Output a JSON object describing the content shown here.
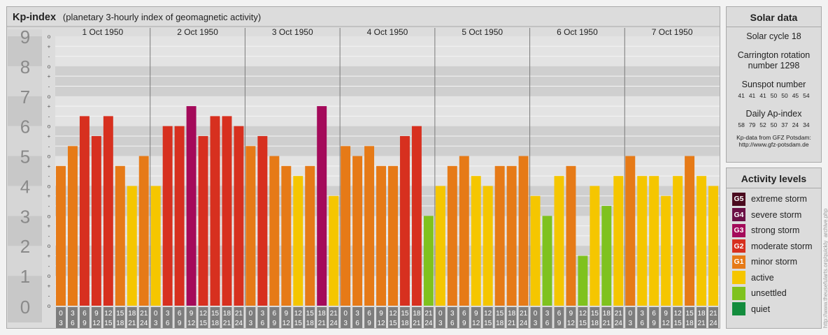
{
  "header": {
    "title": "Kp-index",
    "subtitle": "(planetary 3-hourly index of geomagnetic activity)"
  },
  "chart_data": {
    "type": "bar",
    "ylim": [
      0,
      9
    ],
    "y_major_ticks": [
      "0",
      "1",
      "2",
      "3",
      "4",
      "5",
      "6",
      "7",
      "8",
      "9"
    ],
    "y_minor_ticks": [
      "o",
      "+",
      "-"
    ],
    "days": [
      "1 Oct 1950",
      "2 Oct 1950",
      "3 Oct 1950",
      "4 Oct 1950",
      "5 Oct 1950",
      "6 Oct 1950",
      "7 Oct 1950"
    ],
    "interval_start": [
      "0",
      "3",
      "6",
      "9",
      "12",
      "15",
      "18",
      "21"
    ],
    "interval_end": [
      "3",
      "6",
      "9",
      "12",
      "15",
      "18",
      "21",
      "24"
    ],
    "values": [
      [
        4.667,
        5.333,
        6.333,
        5.667,
        6.333,
        4.667,
        4.0,
        5.0
      ],
      [
        4.0,
        6.0,
        6.0,
        6.667,
        5.667,
        6.333,
        6.333,
        6.0
      ],
      [
        5.333,
        5.667,
        5.0,
        4.667,
        4.333,
        4.667,
        6.667,
        3.667
      ],
      [
        5.333,
        5.0,
        5.333,
        4.667,
        4.667,
        5.667,
        6.0,
        3.0
      ],
      [
        4.0,
        4.667,
        5.0,
        4.333,
        4.0,
        4.667,
        4.667,
        5.0
      ],
      [
        3.667,
        3.0,
        4.333,
        4.667,
        1.667,
        4.0,
        3.333,
        4.333
      ],
      [
        5.0,
        4.333,
        4.333,
        3.667,
        4.333,
        5.0,
        4.333,
        4.0
      ]
    ],
    "colors": {
      "quiet": "#138c3d",
      "unsettled": "#7fc21e",
      "active": "#f5c600",
      "minor": "#e67a17",
      "moderate": "#d7301f",
      "strong": "#a40a5a",
      "severe": "#6b0f45",
      "extreme": "#4a0a1e"
    }
  },
  "solar": {
    "title": "Solar data",
    "cycle": "Solar cycle 18",
    "carrington_line1": "Carrington rotation",
    "carrington_line2": "number 1298",
    "sunspot_label": "Sunspot number",
    "sunspot_values": [
      "41",
      "41",
      "41",
      "50",
      "50",
      "45",
      "54"
    ],
    "ap_label": "Daily Ap-index",
    "ap_values": [
      "58",
      "79",
      "52",
      "50",
      "37",
      "24",
      "34"
    ],
    "credit_line1": "Kp-data from GFZ Potsdam:",
    "credit_line2": "http://www.gfz-potsdam.de"
  },
  "activity": {
    "title": "Activity levels",
    "items": [
      {
        "badge": "G5",
        "label": "extreme storm",
        "color": "#4a0a1e"
      },
      {
        "badge": "G4",
        "label": "severe storm",
        "color": "#6b0f45"
      },
      {
        "badge": "G3",
        "label": "strong storm",
        "color": "#a40a5a"
      },
      {
        "badge": "G2",
        "label": "moderate storm",
        "color": "#d7301f"
      },
      {
        "badge": "G1",
        "label": "minor storm",
        "color": "#e67a17"
      },
      {
        "badge": "",
        "label": "active",
        "color": "#f5c600"
      },
      {
        "badge": "",
        "label": "unsettled",
        "color": "#7fc21e"
      },
      {
        "badge": "",
        "label": "quiet",
        "color": "#138c3d"
      }
    ]
  },
  "side_url": "http://www.theusefularts.org/quickly_archive.php"
}
